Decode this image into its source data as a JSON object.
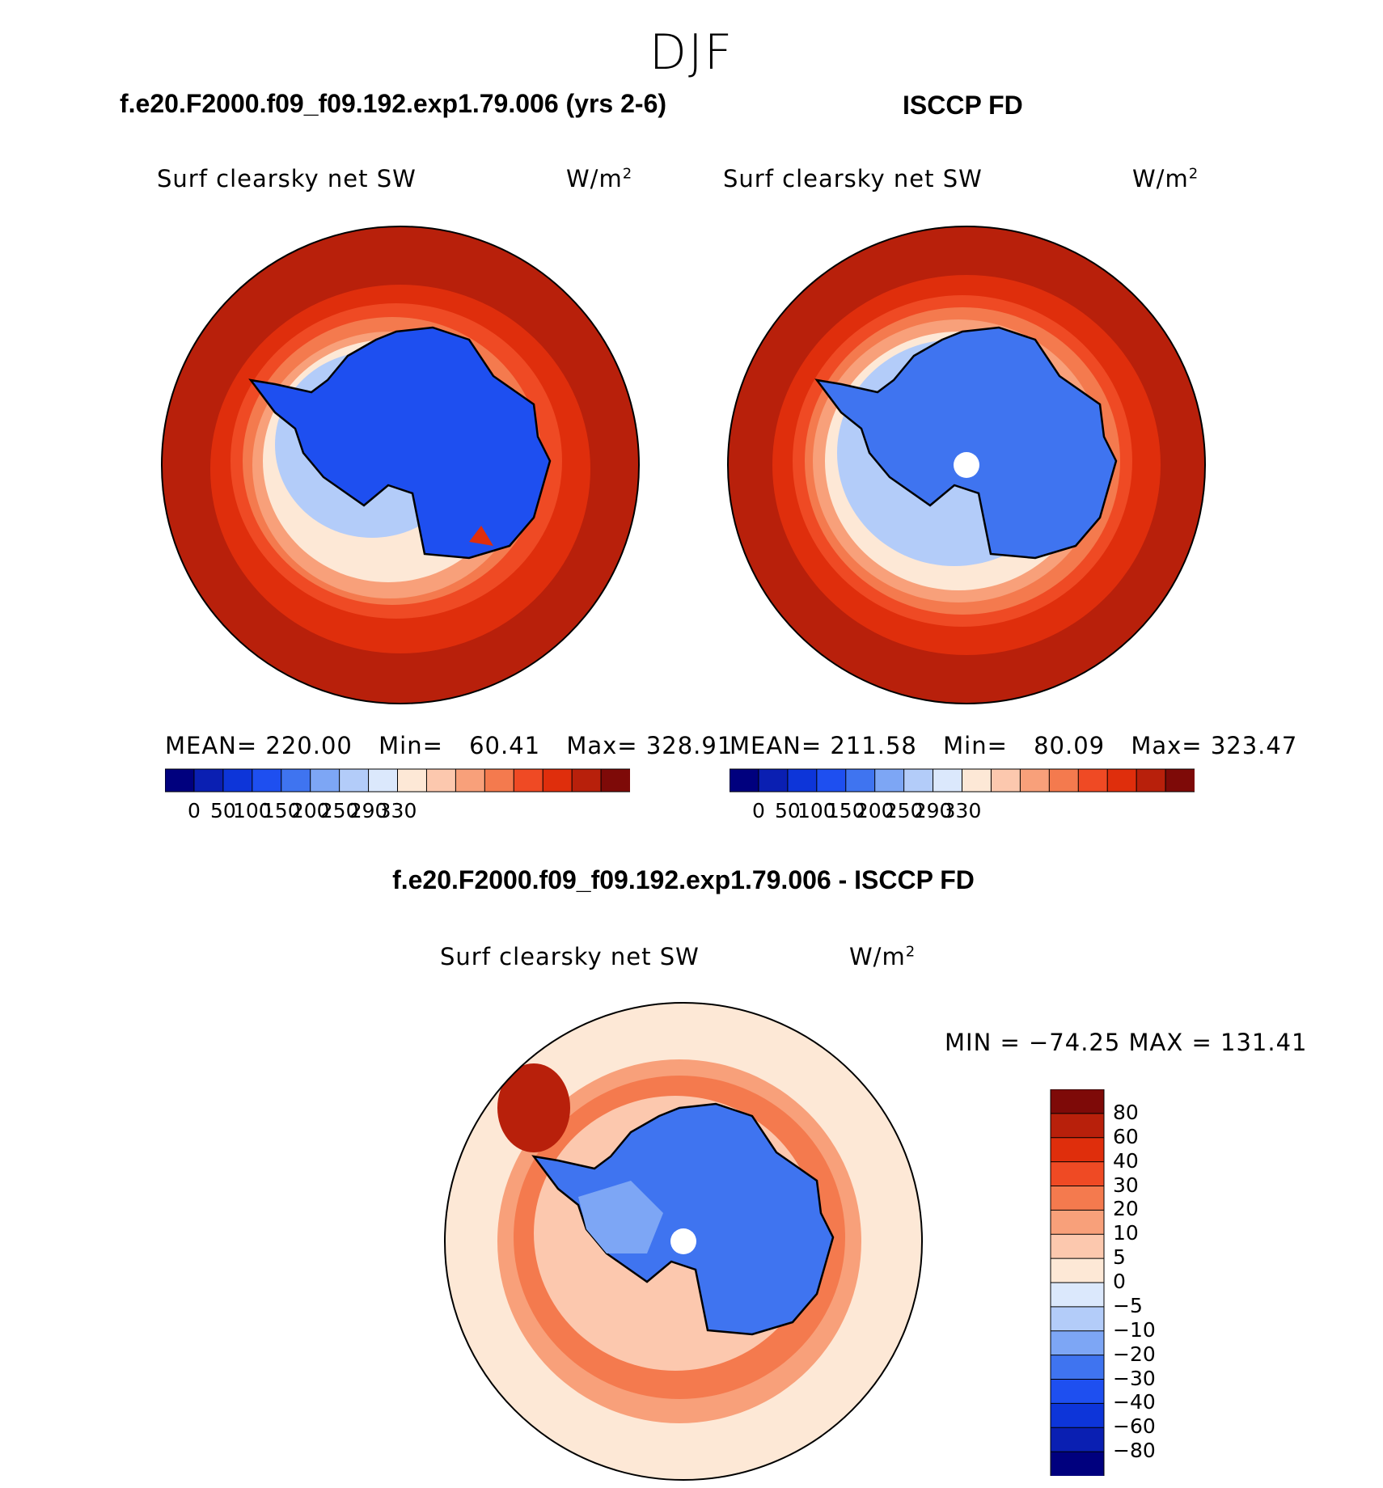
{
  "header": {
    "title": "DJF",
    "left_case": "f.e20.F2000.f09_f09.192.exp1.79.006 (yrs 2-6)",
    "right_case": "ISCCP FD",
    "diff_case": "f.e20.F2000.f09_f09.192.exp1.79.006 - ISCCP FD"
  },
  "panels": {
    "left": {
      "variable": "Surf clearsky net SW",
      "units": "W/m",
      "units_exp": "2",
      "mean_label": "MEAN=",
      "mean": "220.00",
      "min_label": "Min=",
      "min": "60.41",
      "max_label": "Max=",
      "max": "328.91"
    },
    "right": {
      "variable": "Surf clearsky net SW",
      "units": "W/m",
      "units_exp": "2",
      "mean_label": "MEAN=",
      "mean": "211.58",
      "min_label": "Min=",
      "min": "80.09",
      "max_label": "Max=",
      "max": "323.47"
    },
    "diff": {
      "variable": "Surf clearsky net SW",
      "units": "W/m",
      "units_exp": "2",
      "stats": "MIN = −74.25 MAX = 131.41"
    }
  },
  "chart_data": [
    {
      "type": "heatmap",
      "title": "f.e20.F2000.f09_f09.192.exp1.79.006 (yrs 2-6)",
      "variable": "Surf clearsky net SW",
      "units": "W/m^2",
      "projection": "south polar stereographic",
      "mean": 220.0,
      "min": 60.41,
      "max": 328.91,
      "colorbar_ticks": [
        "0",
        "50",
        "100",
        "150",
        "200",
        "250",
        "290",
        "330"
      ],
      "colorbar_colors": [
        "#00007e",
        "#0a1fb2",
        "#0d35d9",
        "#1e4ff0",
        "#3f74f0",
        "#7da6f5",
        "#b3ccf9",
        "#dbe8fc",
        "#fde8d6",
        "#fcc8ae",
        "#f8a07a",
        "#f47a4e",
        "#ef4a24",
        "#df2e0c",
        "#b8200b",
        "#7e0a08"
      ]
    },
    {
      "type": "heatmap",
      "title": "ISCCP FD",
      "variable": "Surf clearsky net SW",
      "units": "W/m^2",
      "projection": "south polar stereographic",
      "mean": 211.58,
      "min": 80.09,
      "max": 323.47,
      "colorbar_ticks": [
        "0",
        "50",
        "100",
        "150",
        "200",
        "250",
        "290",
        "330"
      ],
      "colorbar_colors": [
        "#00007e",
        "#0a1fb2",
        "#0d35d9",
        "#1e4ff0",
        "#3f74f0",
        "#7da6f5",
        "#b3ccf9",
        "#dbe8fc",
        "#fde8d6",
        "#fcc8ae",
        "#f8a07a",
        "#f47a4e",
        "#ef4a24",
        "#df2e0c",
        "#b8200b",
        "#7e0a08"
      ]
    },
    {
      "type": "heatmap",
      "title": "f.e20.F2000.f09_f09.192.exp1.79.006 - ISCCP FD",
      "variable": "Surf clearsky net SW",
      "units": "W/m^2",
      "projection": "south polar stereographic",
      "min": -74.25,
      "max": 131.41,
      "colorbar_ticks": [
        "80",
        "60",
        "40",
        "30",
        "20",
        "10",
        "5",
        "0",
        "−5",
        "−10",
        "−20",
        "−30",
        "−40",
        "−60",
        "−80"
      ],
      "colorbar_colors": [
        "#7e0a08",
        "#b8200b",
        "#df2e0c",
        "#ef4a24",
        "#f47a4e",
        "#f8a07a",
        "#fcc8ae",
        "#fde8d6",
        "#dbe8fc",
        "#b3ccf9",
        "#7da6f5",
        "#3f74f0",
        "#1e4ff0",
        "#0d35d9",
        "#0a1fb2",
        "#00007e"
      ]
    }
  ]
}
